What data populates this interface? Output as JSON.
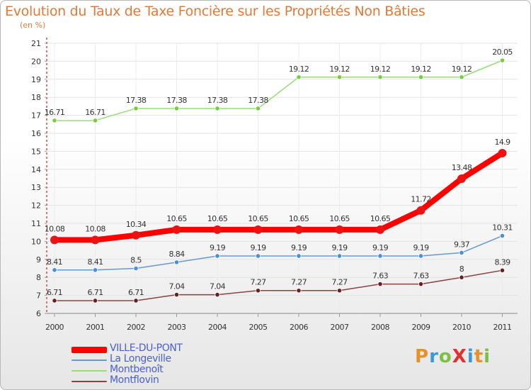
{
  "title": "Evolution du Taux de Taxe Foncière sur les Propriétés Non Bâties",
  "subtitle": "(en %)",
  "colors": {
    "title": "#e07a3a",
    "legend_text": "#4a5fd0",
    "grid": "#e0e0e0"
  },
  "logo": {
    "text": "ProXiti",
    "letters": [
      {
        "ch": "P",
        "color": "#e8902a"
      },
      {
        "ch": "r",
        "color": "#3a9ad9"
      },
      {
        "ch": "o",
        "color": "#7cc043"
      },
      {
        "ch": "X",
        "color": "#e03030"
      },
      {
        "ch": "i",
        "color": "#3a9ad9"
      },
      {
        "ch": "t",
        "color": "#e8902a"
      },
      {
        "ch": "i",
        "color": "#7cc043"
      }
    ]
  },
  "chart_data": {
    "type": "line",
    "title": "Evolution du Taux de Taxe Foncière sur les Propriétés Non Bâties",
    "ylabel": "(en %)",
    "x": [
      "2000",
      "2001",
      "2002",
      "2003",
      "2004",
      "2005",
      "2006",
      "2007",
      "2008",
      "2009",
      "2010",
      "2011"
    ],
    "ylim": [
      6,
      21
    ],
    "yticks": [
      6,
      7,
      8,
      9,
      10,
      11,
      12,
      13,
      14,
      15,
      16,
      17,
      18,
      19,
      20,
      21
    ],
    "grid": true,
    "legend_position": "bottom-left",
    "series": [
      {
        "name": "VILLE-DU-PONT",
        "color": "#ff0000",
        "marker": "#ee1111",
        "width": 8,
        "msize": 6,
        "values": [
          10.08,
          10.08,
          10.34,
          10.65,
          10.65,
          10.65,
          10.65,
          10.65,
          10.65,
          11.72,
          13.48,
          14.9
        ],
        "labels": [
          "10.08",
          "10.08",
          "10.34",
          "10.65",
          "10.65",
          "10.65",
          "10.65",
          "10.65",
          "10.65",
          "11.72",
          "13.48",
          "14.9"
        ]
      },
      {
        "name": "La Longeville",
        "color": "#6699cc",
        "marker": "#4a8fd8",
        "width": 1.5,
        "msize": 3.2,
        "values": [
          8.41,
          8.41,
          8.5,
          8.84,
          9.19,
          9.19,
          9.19,
          9.19,
          9.19,
          9.19,
          9.37,
          10.31
        ],
        "labels": [
          "8.41",
          "8.41",
          "8.5",
          "8.84",
          "9.19",
          "9.19",
          "9.19",
          "9.19",
          "9.19",
          "9.19",
          "9.37",
          "10.31"
        ]
      },
      {
        "name": "Montbenoît",
        "color": "#99dd77",
        "marker": "#77cc44",
        "width": 1.5,
        "msize": 3.2,
        "values": [
          16.71,
          16.71,
          17.38,
          17.38,
          17.38,
          17.38,
          19.12,
          19.12,
          19.12,
          19.12,
          19.12,
          20.05
        ],
        "labels": [
          "16.71",
          "16.71",
          "17.38",
          "17.38",
          "17.38",
          "17.38",
          "19.12",
          "19.12",
          "19.12",
          "19.12",
          "19.12",
          "20.05"
        ]
      },
      {
        "name": "Montflovin",
        "color": "#884444",
        "marker": "#662222",
        "width": 1.5,
        "msize": 3.2,
        "values": [
          6.71,
          6.71,
          6.71,
          7.04,
          7.04,
          7.27,
          7.27,
          7.27,
          7.63,
          7.63,
          8,
          8.39
        ],
        "labels": [
          "6.71",
          "6.71",
          "6.71",
          "7.04",
          "7.04",
          "7.27",
          "7.27",
          "7.27",
          "7.63",
          "7.63",
          "8",
          "8.39"
        ]
      }
    ]
  }
}
